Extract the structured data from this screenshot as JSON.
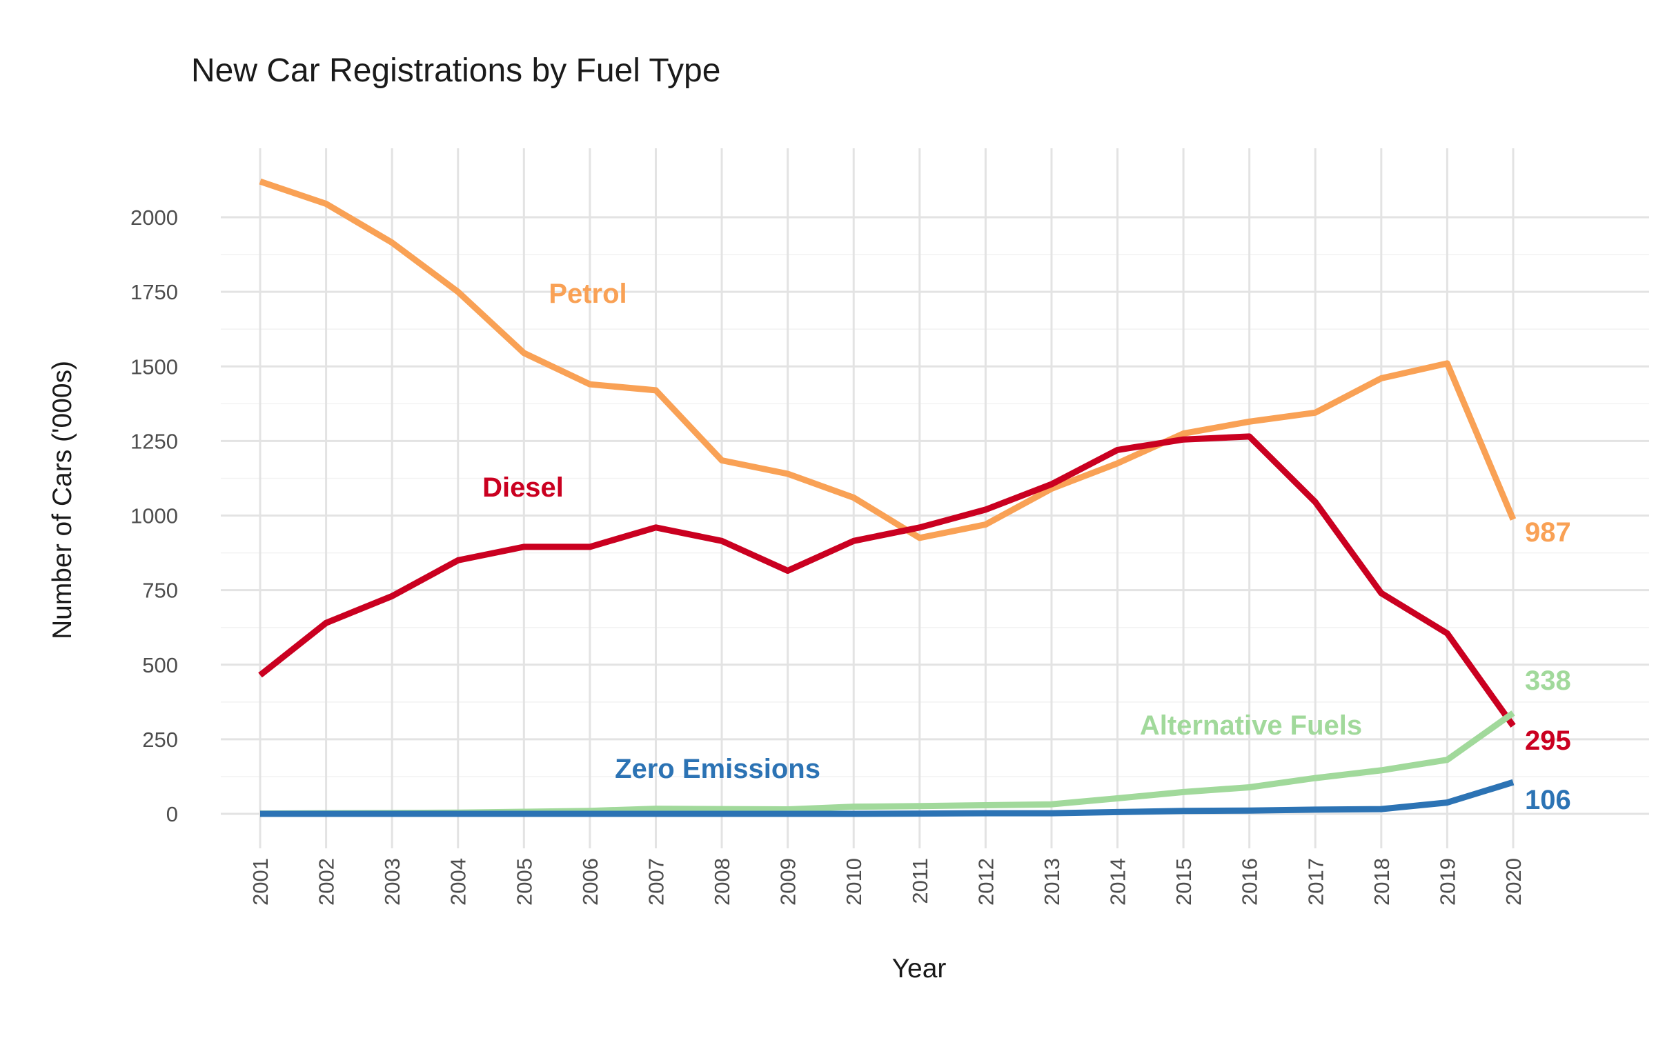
{
  "chart_data": {
    "type": "line",
    "title": "New Car Registrations by Fuel Type",
    "xlabel": "Year",
    "ylabel": "Number of Cars ('000s)",
    "x": [
      2001,
      2002,
      2003,
      2004,
      2005,
      2006,
      2007,
      2008,
      2009,
      2010,
      2011,
      2012,
      2013,
      2014,
      2015,
      2016,
      2017,
      2018,
      2019,
      2020
    ],
    "x_tick_labels": [
      "2001",
      "2002",
      "2003",
      "2004",
      "2005",
      "2006",
      "2007",
      "2008",
      "2009",
      "2010",
      "2011",
      "2012",
      "2013",
      "2014",
      "2015",
      "2016",
      "2017",
      "2018",
      "2019",
      "2020"
    ],
    "y_ticks": [
      0,
      250,
      500,
      750,
      1000,
      1250,
      1500,
      1750,
      2000
    ],
    "y_tick_labels": [
      "0",
      "250",
      "500",
      "750",
      "1000",
      "1250",
      "1500",
      "1750",
      "2000"
    ],
    "ylim": [
      -80,
      2200
    ],
    "grid": true,
    "legend": "none (direct labels on lines)",
    "series": [
      {
        "name": "Petrol",
        "color": "#F9A155",
        "values": [
          2120,
          2045,
          1915,
          1750,
          1545,
          1440,
          1420,
          1185,
          1140,
          1060,
          925,
          970,
          1090,
          1175,
          1275,
          1315,
          1345,
          1460,
          1510,
          987
        ],
        "end_label": "987"
      },
      {
        "name": "Diesel",
        "color": "#CA0020",
        "values": [
          465,
          640,
          730,
          850,
          895,
          895,
          960,
          915,
          815,
          915,
          960,
          1020,
          1105,
          1220,
          1255,
          1265,
          1045,
          740,
          605,
          295
        ],
        "end_label": "295"
      },
      {
        "name": "Alternative Fuels",
        "color": "#A1D99B",
        "values": [
          1,
          2,
          3,
          4,
          7,
          10,
          17,
          16,
          15,
          24,
          26,
          29,
          32,
          52,
          73,
          89,
          120,
          146,
          181,
          338
        ],
        "end_label": "338"
      },
      {
        "name": "Zero Emissions",
        "color": "#2C73B4",
        "values": [
          0,
          0,
          0,
          0,
          0,
          0,
          0,
          0,
          0,
          0,
          1,
          2,
          2,
          6,
          10,
          11,
          14,
          16,
          38,
          106
        ],
        "end_label": "106"
      }
    ]
  }
}
